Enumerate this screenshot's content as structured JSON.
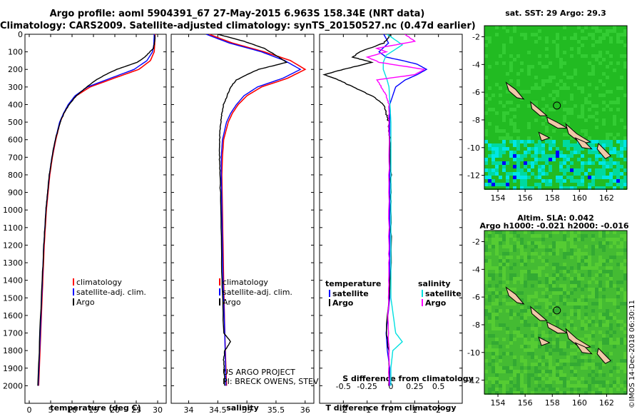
{
  "header": {
    "line1": "Argo profile: aoml 5904391_67 27-May-2015 6.963S 158.34E (NRT data)",
    "line2": "Climatology: CARS2009. Satellite-adjusted climatology: synTS_20150527.nc (0.47d earlier)"
  },
  "colors": {
    "climatology": "#ff0000",
    "satellite": "#0000ff",
    "argo": "#000000",
    "sat_salinity": "#00e0e0",
    "argo_salinity": "#ff00ff"
  },
  "chart_data": [
    {
      "type": "line",
      "id": "temperature",
      "xlabel": "temperature (deg C)",
      "ylabel": "",
      "xlim": [
        -1,
        32
      ],
      "ylim": [
        2100,
        0
      ],
      "xticks": [
        0,
        5,
        10,
        15,
        20,
        25,
        30
      ],
      "yticks": [
        0,
        100,
        200,
        300,
        400,
        500,
        600,
        700,
        800,
        900,
        1000,
        1100,
        1200,
        1300,
        1400,
        1500,
        1600,
        1700,
        1800,
        1900,
        2000
      ],
      "legend": [
        {
          "label": "climatology",
          "series": "climatology"
        },
        {
          "label": "satellite-adj. clim.",
          "series": "satellite"
        },
        {
          "label": "Argo",
          "series": "argo"
        }
      ],
      "series": [
        {
          "name": "climatology",
          "color": "#ff0000",
          "depth": [
            0,
            60,
            100,
            150,
            200,
            250,
            300,
            350,
            400,
            450,
            500,
            600,
            700,
            800,
            900,
            1000,
            1200,
            1500,
            2000
          ],
          "values": [
            29.4,
            29.3,
            29.2,
            28.3,
            25.6,
            19.8,
            14.2,
            11.0,
            9.2,
            8.1,
            7.2,
            6.2,
            5.4,
            4.8,
            4.4,
            4.0,
            3.5,
            3.0,
            2.2
          ]
        },
        {
          "name": "satellite",
          "color": "#0000ff",
          "depth": [
            0,
            60,
            100,
            150,
            200,
            250,
            300,
            350,
            400,
            450,
            500,
            600,
            700,
            800,
            900,
            1000,
            1200,
            1500,
            2000
          ],
          "values": [
            29.2,
            29.1,
            28.8,
            27.5,
            24.5,
            19.0,
            13.6,
            10.7,
            9.1,
            8.0,
            7.1,
            6.1,
            5.3,
            4.7,
            4.3,
            3.9,
            3.4,
            2.9,
            2.1
          ]
        },
        {
          "name": "argo",
          "color": "#000000",
          "depth": [
            5,
            40,
            80,
            100,
            130,
            160,
            200,
            230,
            260,
            300,
            350,
            400,
            450,
            500,
            600,
            700,
            800,
            900,
            1000,
            1200,
            1500,
            2000
          ],
          "values": [
            29.4,
            29.3,
            29.0,
            28.2,
            27.0,
            25.2,
            20.4,
            17.8,
            15.6,
            13.4,
            11.0,
            9.3,
            8.1,
            7.2,
            6.1,
            5.3,
            4.7,
            4.3,
            3.9,
            3.4,
            2.8,
            2.0
          ]
        }
      ]
    },
    {
      "type": "line",
      "id": "salinity",
      "xlabel": "salinity",
      "xlim": [
        33.7,
        36.15
      ],
      "ylim": [
        2100,
        0
      ],
      "xticks": [
        34,
        34.5,
        35,
        35.5,
        36
      ],
      "legend": [
        {
          "label": "climatology",
          "series": "climatology"
        },
        {
          "label": "satellite-adj. clim.",
          "series": "satellite"
        },
        {
          "label": "Argo",
          "series": "argo"
        }
      ],
      "annotation": [
        "US ARGO PROJECT",
        "PI: BRECK OWENS, STEVE JAYNE, P.E. ROBBINS"
      ],
      "series": [
        {
          "name": "climatology",
          "color": "#ff0000",
          "depth": [
            0,
            50,
            100,
            150,
            200,
            250,
            300,
            350,
            400,
            450,
            500,
            600,
            700,
            800,
            1000,
            1400,
            1700,
            2000
          ],
          "values": [
            34.35,
            34.75,
            35.3,
            35.75,
            36.0,
            35.7,
            35.25,
            35.0,
            34.85,
            34.75,
            34.68,
            34.6,
            34.58,
            34.57,
            34.58,
            34.6,
            34.62,
            34.65
          ]
        },
        {
          "name": "satellite",
          "color": "#0000ff",
          "depth": [
            0,
            50,
            100,
            150,
            200,
            250,
            300,
            350,
            400,
            450,
            500,
            600,
            700,
            800,
            1000,
            1400,
            1700,
            2000
          ],
          "values": [
            34.3,
            34.7,
            35.25,
            35.65,
            35.92,
            35.62,
            35.18,
            34.95,
            34.82,
            34.72,
            34.65,
            34.58,
            34.56,
            34.56,
            34.57,
            34.59,
            34.62,
            34.64
          ]
        },
        {
          "name": "argo",
          "color": "#000000",
          "depth": [
            0,
            40,
            80,
            120,
            160,
            200,
            230,
            260,
            300,
            350,
            400,
            450,
            500,
            600,
            700,
            800,
            1000,
            1400,
            1700,
            1750,
            1800,
            1850,
            1900,
            2000
          ],
          "values": [
            34.5,
            34.95,
            35.3,
            35.5,
            35.68,
            35.2,
            35.0,
            34.82,
            34.72,
            34.66,
            34.6,
            34.57,
            34.55,
            34.53,
            34.53,
            34.54,
            34.55,
            34.57,
            34.6,
            34.72,
            34.62,
            34.6,
            34.61,
            34.62
          ]
        }
      ]
    },
    {
      "type": "line",
      "id": "differences",
      "xlabel": "T difference from climatology",
      "xlim": [
        -3,
        3
      ],
      "ylim": [
        2100,
        0
      ],
      "xticks": [
        -2,
        -1,
        0,
        1,
        2
      ],
      "secondary_xlabel": "S difference from climatology",
      "secondary_xticks": [
        "-0.5",
        "-0.25",
        "0",
        "0.25",
        "0.5"
      ],
      "legend": [
        {
          "header": "temperature"
        },
        {
          "label": "satellite",
          "series": "t_satellite"
        },
        {
          "label": "Argo",
          "series": "t_argo"
        },
        {
          "header": "salinity"
        },
        {
          "label": "satellite",
          "series": "s_satellite"
        },
        {
          "label": "Argo",
          "series": "s_argo"
        }
      ],
      "series": [
        {
          "name": "t_satellite",
          "color": "#0000ff",
          "depth": [
            0,
            50,
            100,
            130,
            150,
            170,
            200,
            230,
            260,
            300,
            400,
            600,
            1000,
            1500,
            1700,
            1800,
            1900,
            2000
          ],
          "values": [
            -0.3,
            -0.1,
            -0.5,
            -0.2,
            0.5,
            1.1,
            1.5,
            1.1,
            0.6,
            0.2,
            -0.05,
            -0.05,
            -0.05,
            -0.05,
            -0.2,
            -0.15,
            -0.05,
            -0.05
          ]
        },
        {
          "name": "t_argo",
          "color": "#000000",
          "depth": [
            0,
            50,
            100,
            130,
            160,
            200,
            230,
            260,
            300,
            350,
            400,
            450,
            500,
            600,
            800,
            1000,
            1300,
            1700,
            1800,
            2000
          ],
          "values": [
            0.0,
            -0.3,
            -1.3,
            -1.6,
            -0.8,
            -2.0,
            -2.8,
            -2.2,
            -1.6,
            -0.8,
            -0.3,
            -0.2,
            -0.1,
            -0.05,
            0.0,
            0.0,
            0.0,
            -0.2,
            -0.1,
            -0.1
          ]
        },
        {
          "name": "s_satellite",
          "color": "#00e0e0",
          "depth": [
            0,
            60,
            120,
            160,
            200,
            260,
            300,
            400,
            500,
            800,
            1200,
            1500,
            1700,
            1750,
            1800,
            1900,
            2000
          ],
          "values": [
            -0.04,
            0.12,
            -0.05,
            -0.08,
            -0.08,
            -0.04,
            -0.02,
            -0.01,
            0.0,
            0.0,
            0.0,
            0.0,
            0.05,
            0.12,
            0.02,
            0.0,
            0.0
          ]
        },
        {
          "name": "s_argo",
          "color": "#ff00ff",
          "depth": [
            0,
            40,
            80,
            100,
            130,
            160,
            200,
            230,
            260,
            300,
            350,
            400,
            500,
            800,
            1200,
            1400,
            1600,
            1800,
            2000
          ],
          "values": [
            0.15,
            0.25,
            -0.15,
            -0.05,
            -0.25,
            -0.12,
            0.35,
            0.25,
            -0.15,
            -0.1,
            -0.05,
            -0.02,
            -0.02,
            -0.02,
            -0.02,
            -0.02,
            -0.03,
            -0.02,
            -0.02
          ]
        }
      ]
    }
  ],
  "maps": [
    {
      "title": "sat. SST: 29 Argo: 29.3",
      "sublabel": "",
      "xticks": [
        "154",
        "156",
        "158",
        "160",
        "162"
      ],
      "yticks": [
        "-2",
        "-4",
        "-6",
        "-8",
        "-10",
        "-12"
      ]
    },
    {
      "title": "Altim. SLA: 0.042",
      "sublabel": "Argo h1000: -0.021 h2000: -0.016",
      "xticks": [
        "154",
        "156",
        "158",
        "160",
        "162"
      ],
      "yticks": [
        "-2",
        "-4",
        "-6",
        "-8",
        "-10",
        "-12"
      ]
    }
  ],
  "stamp": "©IMOS 14-Dec-2018 06:30:11"
}
